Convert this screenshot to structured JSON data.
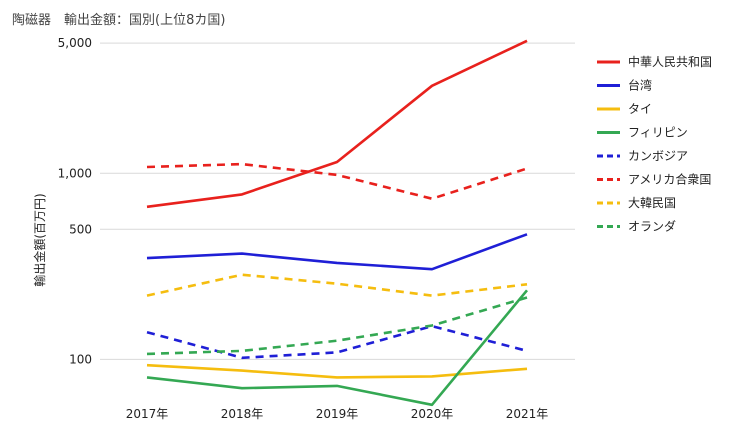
{
  "chart_data": {
    "type": "line",
    "title": "陶磁器　輸出金額：国別(上位8カ国)",
    "ylabel": "輸出金額(百万円)",
    "xlabel": "",
    "y_scale": "log",
    "ylim": [
      62,
      5200
    ],
    "yticks": [
      100,
      500,
      1000,
      5000
    ],
    "ytick_labels": [
      "100",
      "500",
      "1,000",
      "5,000"
    ],
    "categories": [
      "2017年",
      "2018年",
      "2019年",
      "2020年",
      "2021年"
    ],
    "grid": true,
    "legend_position": "right",
    "series": [
      {
        "name": "中華人民共和国",
        "color": "#e8211d",
        "dashed": false,
        "values": [
          660,
          770,
          1150,
          2950,
          5150
        ]
      },
      {
        "name": "台湾",
        "color": "#1f1fd6",
        "dashed": false,
        "values": [
          350,
          370,
          330,
          305,
          470
        ]
      },
      {
        "name": "タイ",
        "color": "#f5bd0f",
        "dashed": false,
        "values": [
          93,
          87,
          80,
          81,
          89
        ]
      },
      {
        "name": "フィリピン",
        "color": "#34a853",
        "dashed": false,
        "values": [
          80,
          70,
          72,
          57,
          235
        ]
      },
      {
        "name": "カンボジア",
        "color": "#1f1fd6",
        "dashed": true,
        "values": [
          140,
          102,
          109,
          151,
          111
        ]
      },
      {
        "name": "アメリカ合衆国",
        "color": "#e8211d",
        "dashed": true,
        "values": [
          1080,
          1120,
          980,
          730,
          1060
        ]
      },
      {
        "name": "大韓民国",
        "color": "#f5bd0f",
        "dashed": true,
        "values": [
          220,
          285,
          255,
          220,
          253
        ]
      },
      {
        "name": "オランダ",
        "color": "#34a853",
        "dashed": true,
        "values": [
          107,
          111,
          126,
          152,
          215
        ]
      }
    ]
  }
}
